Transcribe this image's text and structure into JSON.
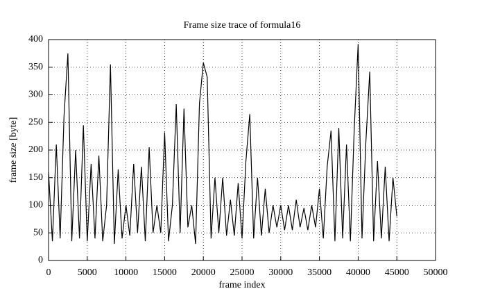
{
  "chart_data": {
    "type": "line",
    "title": "Frame size trace of formula16",
    "x_label": "frame index",
    "y_label": "frame size [byte]",
    "x": [
      0,
      500,
      1000,
      1500,
      2000,
      2500,
      3000,
      3500,
      4000,
      4500,
      5000,
      5500,
      6000,
      6500,
      7000,
      7500,
      8000,
      8500,
      9000,
      9500,
      10000,
      10500,
      11000,
      11500,
      12000,
      12500,
      13000,
      13500,
      14000,
      14500,
      15000,
      15500,
      16000,
      16500,
      17000,
      17500,
      18000,
      18500,
      19000,
      19500,
      20000,
      20500,
      21000,
      21500,
      22000,
      22500,
      23000,
      23500,
      24000,
      24500,
      25000,
      25500,
      26000,
      26500,
      27000,
      27500,
      28000,
      28500,
      29000,
      29500,
      30000,
      30500,
      31000,
      31500,
      32000,
      32500,
      33000,
      33500,
      34000,
      34500,
      35000,
      35500,
      36000,
      36500,
      37000,
      37500,
      38000,
      38500,
      39000,
      39500,
      40000,
      40500,
      41000,
      41500,
      42000,
      42500,
      43000,
      43500,
      44000,
      44500,
      45000
    ],
    "series": [
      {
        "color": "#000000",
        "values": [
          160,
          35,
          210,
          40,
          262,
          375,
          35,
          200,
          40,
          245,
          35,
          175,
          40,
          190,
          35,
          100,
          355,
          30,
          165,
          40,
          100,
          45,
          175,
          50,
          170,
          35,
          205,
          50,
          100,
          50,
          232,
          35,
          100,
          283,
          50,
          275,
          60,
          100,
          30,
          285,
          358,
          332,
          40,
          150,
          50,
          150,
          45,
          110,
          45,
          140,
          40,
          180,
          265,
          40,
          150,
          45,
          130,
          50,
          100,
          60,
          100,
          55,
          100,
          55,
          110,
          60,
          95,
          55,
          100,
          60,
          130,
          40,
          170,
          235,
          35,
          240,
          40,
          210,
          35,
          240,
          392,
          40,
          215,
          342,
          35,
          180,
          40,
          170,
          35,
          150,
          80
        ]
      }
    ],
    "xlim": [
      0,
      50000
    ],
    "xticks": [
      0,
      5000,
      10000,
      15000,
      20000,
      25000,
      30000,
      35000,
      40000,
      45000,
      50000
    ],
    "ylim": [
      0,
      400
    ],
    "yticks": [
      0,
      50,
      100,
      150,
      200,
      250,
      300,
      350,
      400
    ],
    "grid": true
  }
}
